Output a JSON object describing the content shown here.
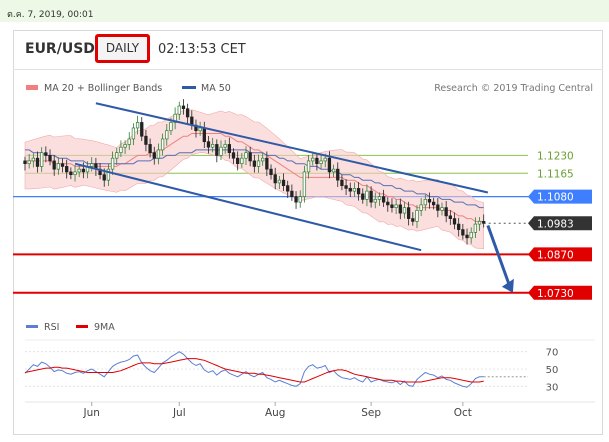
{
  "header": {
    "datetime": "ต.ค. 7, 2019, 00:01",
    "pair": "EUR/USD",
    "timeframe": "DAILY",
    "time": "02:13:53 CET"
  },
  "legend": {
    "ma20": "MA 20 + Bollinger Bands",
    "ma50": "MA 50",
    "credit": "Research © 2019 Trading Central"
  },
  "rsi_legend": {
    "rsi": "RSI",
    "ma": "9MA"
  },
  "colors": {
    "resistance_support_red": "#e00000",
    "level_green": "#8bc34a",
    "level_blue": "#3f7fff",
    "trend": "#2e5aa8",
    "bands": "#f8c9c9",
    "ma20": "#f08080",
    "ma50": "#5b6fb0",
    "up_candle": "#2e7d32",
    "down_candle": "#222222"
  },
  "chart_data": {
    "type": "candlestick",
    "symbol": "EUR/USD",
    "timeframe": "DAILY",
    "x_ticks": [
      "Jun",
      "Jul",
      "Aug",
      "Sep",
      "Oct"
    ],
    "price_range": [
      1.066,
      1.145
    ],
    "levels": [
      {
        "label": "1.1230",
        "value": 1.123,
        "style": "green"
      },
      {
        "label": "1.1165",
        "value": 1.1165,
        "style": "green"
      },
      {
        "label": "1.1080",
        "value": 1.108,
        "style": "blue"
      },
      {
        "label": "1.0983",
        "value": 1.0983,
        "style": "current"
      },
      {
        "label": "1.0870",
        "value": 1.087,
        "style": "red"
      },
      {
        "label": "1.0730",
        "value": 1.073,
        "style": "red"
      }
    ],
    "closes": [
      1.12,
      1.121,
      1.122,
      1.119,
      1.124,
      1.123,
      1.121,
      1.118,
      1.12,
      1.119,
      1.117,
      1.116,
      1.117,
      1.118,
      1.117,
      1.119,
      1.12,
      1.118,
      1.116,
      1.114,
      1.118,
      1.122,
      1.124,
      1.126,
      1.127,
      1.129,
      1.133,
      1.135,
      1.13,
      1.127,
      1.124,
      1.122,
      1.125,
      1.129,
      1.132,
      1.135,
      1.138,
      1.141,
      1.14,
      1.137,
      1.134,
      1.132,
      1.133,
      1.128,
      1.126,
      1.127,
      1.123,
      1.126,
      1.127,
      1.124,
      1.122,
      1.12,
      1.122,
      1.124,
      1.121,
      1.119,
      1.121,
      1.122,
      1.118,
      1.116,
      1.113,
      1.114,
      1.112,
      1.11,
      1.108,
      1.106,
      1.108,
      1.117,
      1.121,
      1.122,
      1.12,
      1.121,
      1.122,
      1.117,
      1.118,
      1.114,
      1.112,
      1.111,
      1.11,
      1.111,
      1.109,
      1.107,
      1.11,
      1.106,
      1.107,
      1.108,
      1.106,
      1.105,
      1.104,
      1.105,
      1.102,
      1.104,
      1.1,
      1.099,
      1.103,
      1.105,
      1.107,
      1.106,
      1.105,
      1.103,
      1.104,
      1.101,
      1.1,
      1.098,
      1.096,
      1.094,
      1.093,
      1.095,
      1.098,
      1.099,
      1.0983
    ],
    "ma20": [
      1.121,
      1.121,
      1.121,
      1.121,
      1.121,
      1.121,
      1.121,
      1.12,
      1.12,
      1.12,
      1.12,
      1.12,
      1.119,
      1.119,
      1.119,
      1.119,
      1.119,
      1.119,
      1.119,
      1.119,
      1.119,
      1.119,
      1.119,
      1.12,
      1.12,
      1.121,
      1.122,
      1.123,
      1.123,
      1.123,
      1.124,
      1.124,
      1.125,
      1.125,
      1.126,
      1.127,
      1.128,
      1.129,
      1.13,
      1.13,
      1.131,
      1.131,
      1.131,
      1.131,
      1.131,
      1.131,
      1.131,
      1.131,
      1.13,
      1.13,
      1.129,
      1.128,
      1.128,
      1.127,
      1.126,
      1.125,
      1.125,
      1.124,
      1.123,
      1.122,
      1.121,
      1.12,
      1.119,
      1.118,
      1.117,
      1.116,
      1.115,
      1.115,
      1.115,
      1.115,
      1.115,
      1.115,
      1.115,
      1.115,
      1.115,
      1.115,
      1.115,
      1.114,
      1.114,
      1.114,
      1.113,
      1.112,
      1.112,
      1.111,
      1.11,
      1.109,
      1.109,
      1.108,
      1.108,
      1.107,
      1.107,
      1.106,
      1.105,
      1.105,
      1.104,
      1.104,
      1.104,
      1.104,
      1.104,
      1.104,
      1.103,
      1.103,
      1.103,
      1.102,
      1.101,
      1.101,
      1.1,
      1.1,
      1.099,
      1.099,
      1.099
    ],
    "ma50": [
      1.125,
      1.125,
      1.124,
      1.124,
      1.124,
      1.123,
      1.123,
      1.123,
      1.122,
      1.122,
      1.122,
      1.121,
      1.121,
      1.121,
      1.121,
      1.12,
      1.12,
      1.12,
      1.12,
      1.12,
      1.12,
      1.12,
      1.12,
      1.12,
      1.12,
      1.12,
      1.12,
      1.121,
      1.121,
      1.121,
      1.121,
      1.122,
      1.122,
      1.122,
      1.123,
      1.123,
      1.123,
      1.124,
      1.124,
      1.124,
      1.124,
      1.125,
      1.125,
      1.125,
      1.125,
      1.125,
      1.125,
      1.125,
      1.125,
      1.125,
      1.125,
      1.125,
      1.125,
      1.125,
      1.124,
      1.124,
      1.124,
      1.124,
      1.123,
      1.123,
      1.123,
      1.122,
      1.122,
      1.121,
      1.121,
      1.12,
      1.12,
      1.12,
      1.119,
      1.119,
      1.119,
      1.118,
      1.118,
      1.118,
      1.117,
      1.117,
      1.116,
      1.116,
      1.116,
      1.115,
      1.115,
      1.114,
      1.114,
      1.114,
      1.113,
      1.113,
      1.112,
      1.112,
      1.112,
      1.111,
      1.111,
      1.11,
      1.11,
      1.11,
      1.109,
      1.109,
      1.109,
      1.108,
      1.108,
      1.108,
      1.107,
      1.107,
      1.107,
      1.106,
      1.106,
      1.106,
      1.105,
      1.105,
      1.105,
      1.104,
      1.104
    ],
    "band_width": 0.0085,
    "trend_lines": [
      {
        "name": "upper-channel",
        "from": [
          17,
          1.142
        ],
        "to": [
          111,
          1.1095
        ]
      },
      {
        "name": "lower-channel",
        "from": [
          12,
          1.12
        ],
        "to": [
          95,
          1.0885
        ]
      }
    ],
    "projection": {
      "from": [
        111,
        1.0975
      ],
      "to": [
        117,
        1.073
      ]
    },
    "rsi": {
      "y_ticks": [
        70,
        50,
        30
      ],
      "range": [
        20,
        80
      ],
      "values": [
        45,
        50,
        55,
        53,
        58,
        56,
        52,
        47,
        49,
        48,
        45,
        44,
        46,
        47,
        45,
        48,
        50,
        47,
        44,
        41,
        47,
        53,
        56,
        58,
        59,
        61,
        65,
        66,
        57,
        52,
        48,
        46,
        51,
        57,
        60,
        64,
        67,
        70,
        67,
        62,
        57,
        54,
        56,
        49,
        46,
        48,
        43,
        47,
        49,
        45,
        43,
        41,
        44,
        47,
        43,
        41,
        44,
        46,
        40,
        38,
        35,
        37,
        35,
        33,
        31,
        30,
        33,
        47,
        53,
        55,
        51,
        52,
        54,
        46,
        48,
        43,
        40,
        39,
        38,
        40,
        37,
        35,
        41,
        35,
        37,
        38,
        36,
        35,
        34,
        36,
        32,
        36,
        31,
        30,
        38,
        42,
        46,
        44,
        43,
        40,
        42,
        38,
        37,
        34,
        32,
        30,
        29,
        33,
        39,
        41,
        41
      ],
      "ma9": [
        46,
        47,
        48,
        49,
        50,
        51,
        51,
        52,
        52,
        51,
        51,
        50,
        49,
        48,
        47,
        46,
        46,
        46,
        46,
        46,
        46,
        46,
        47,
        48,
        50,
        52,
        54,
        56,
        57,
        57,
        57,
        56,
        56,
        56,
        57,
        58,
        59,
        60,
        61,
        62,
        62,
        62,
        61,
        60,
        58,
        56,
        54,
        52,
        50,
        49,
        48,
        47,
        46,
        45,
        45,
        45,
        44,
        44,
        43,
        42,
        41,
        40,
        39,
        38,
        37,
        36,
        35,
        35,
        37,
        39,
        41,
        43,
        45,
        47,
        48,
        49,
        49,
        48,
        46,
        44,
        43,
        42,
        41,
        40,
        39,
        38,
        37,
        37,
        37,
        36,
        36,
        35,
        35,
        35,
        35,
        35,
        36,
        37,
        38,
        39,
        40,
        40,
        40,
        39,
        38,
        37,
        36,
        35,
        35,
        35,
        36
      ]
    }
  }
}
